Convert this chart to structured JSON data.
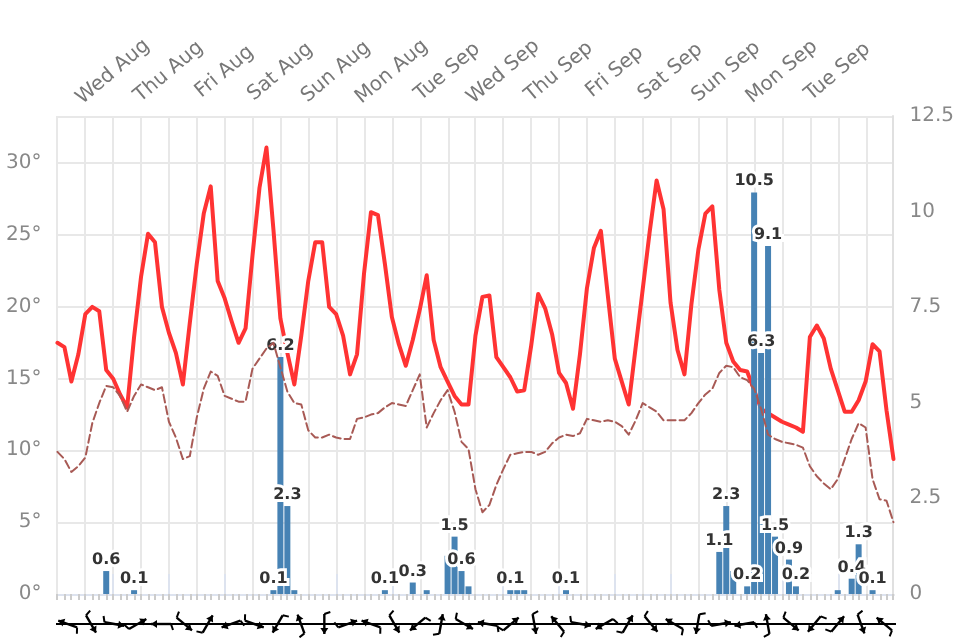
{
  "chart_data": {
    "type": "line",
    "categories": [
      null,
      null,
      null,
      null,
      null,
      null,
      null,
      null,
      "Wed Aug",
      null,
      null,
      null,
      null,
      null,
      null,
      null,
      "Thu Aug",
      null,
      null,
      null,
      null,
      null,
      null,
      null,
      "Fri Aug",
      null,
      null,
      null,
      null,
      null,
      null,
      null,
      "Sat Aug",
      null,
      null,
      null,
      null,
      null,
      null,
      null,
      "Sun Aug",
      null,
      null,
      null,
      null,
      null,
      null,
      null,
      "Mon Aug",
      null,
      null,
      null,
      null,
      null,
      null,
      null,
      "Tue Sep",
      null,
      null,
      null,
      null,
      null,
      null,
      null,
      "Wed Sep",
      null,
      null,
      null,
      null,
      null,
      null,
      null,
      "Thu Sep",
      null,
      null,
      null,
      null,
      null,
      null,
      null,
      "Fri Sep",
      null,
      null,
      null,
      null,
      null,
      null,
      null,
      "Sat Sep",
      null,
      null,
      null,
      null,
      null,
      null,
      null,
      "Sun Sep",
      null,
      null,
      null,
      null,
      null,
      null,
      null,
      "Mon Sep",
      null,
      null,
      null,
      null,
      null,
      null,
      null,
      "Tue Sep",
      null,
      null,
      null,
      null,
      null,
      null,
      null,
      null
    ],
    "ylim": [
      0,
      33.3
    ],
    "yticks": [
      {
        "value": 0,
        "label": "0°"
      },
      {
        "value": 5,
        "label": "5°"
      },
      {
        "value": 10,
        "label": "10°"
      },
      {
        "value": 15,
        "label": "15°"
      },
      {
        "value": 20,
        "label": "20°"
      },
      {
        "value": 25,
        "label": "25°"
      },
      {
        "value": 30,
        "label": "30°"
      }
    ],
    "y2lim": [
      0,
      12.5
    ],
    "y2ticks": [
      0,
      2.5,
      5,
      7.5,
      10,
      12.5
    ],
    "grid": true,
    "series": [
      {
        "color": "#ff3333",
        "line_style": "solid",
        "values": [
          17.5,
          17.2,
          14.8,
          16.7,
          19.5,
          20.0,
          19.7,
          15.6,
          15.0,
          13.9,
          13.0,
          17.9,
          22.1,
          25.1,
          24.5,
          20.0,
          18.2,
          16.8,
          14.6,
          18.9,
          23.0,
          26.5,
          28.4,
          21.8,
          20.6,
          19.0,
          17.5,
          18.5,
          23.6,
          28.3,
          31.1,
          25.4,
          19.2,
          16.8,
          14.6,
          18.0,
          21.8,
          24.5,
          24.5,
          20.0,
          19.5,
          18.0,
          15.3,
          16.7,
          22.3,
          26.6,
          26.4,
          23.0,
          19.3,
          17.4,
          15.9,
          17.7,
          19.8,
          22.2,
          17.7,
          15.8,
          14.8,
          13.8,
          13.2,
          13.2,
          18.0,
          20.7,
          20.8,
          16.5,
          15.8,
          15.1,
          14.1,
          14.2,
          17.3,
          20.9,
          19.9,
          18.1,
          15.4,
          14.7,
          12.9,
          16.7,
          21.3,
          24.1,
          25.3,
          20.8,
          16.4,
          14.8,
          13.2,
          17.2,
          21.2,
          25.2,
          28.8,
          26.8,
          20.3,
          17.0,
          15.3,
          20.2,
          24.0,
          26.5,
          27.0,
          21.2,
          17.5,
          16.2,
          15.6,
          15.5,
          14.2,
          12.9,
          12.6,
          12.3,
          12.0,
          11.8,
          11.6,
          11.3,
          17.9,
          18.7,
          17.8,
          15.7,
          14.2,
          12.7,
          12.7,
          13.5,
          14.8,
          17.4,
          16.9,
          12.8,
          9.4
        ]
      },
      {
        "color": "#a85a55",
        "line_style": "dashed",
        "values": [
          9.9,
          9.4,
          8.5,
          8.9,
          9.5,
          11.9,
          13.3,
          14.5,
          14.4,
          13.8,
          12.7,
          13.8,
          14.6,
          14.4,
          14.2,
          14.4,
          12.0,
          10.9,
          9.4,
          9.6,
          12.3,
          14.3,
          15.5,
          15.2,
          13.8,
          13.6,
          13.4,
          13.4,
          15.7,
          16.4,
          17.1,
          17.5,
          15.8,
          14.1,
          13.3,
          13.2,
          11.4,
          10.9,
          10.9,
          11.1,
          10.9,
          10.8,
          10.8,
          12.2,
          12.3,
          12.5,
          12.6,
          13.0,
          13.3,
          13.2,
          13.1,
          14.2,
          15.3,
          11.6,
          12.6,
          13.5,
          14.2,
          12.7,
          10.6,
          10.1,
          7.3,
          5.7,
          6.2,
          7.6,
          8.7,
          9.7,
          9.8,
          9.9,
          9.9,
          9.7,
          9.9,
          10.5,
          10.9,
          11.1,
          11.0,
          11.2,
          12.2,
          12.1,
          12.0,
          12.1,
          12.0,
          11.7,
          11.1,
          12.1,
          13.3,
          13.0,
          12.7,
          12.1,
          12.1,
          12.1,
          12.1,
          12.6,
          13.3,
          13.9,
          14.3,
          15.4,
          15.9,
          15.8,
          15.1,
          14.9,
          14.3,
          12.9,
          11.1,
          10.8,
          10.6,
          10.5,
          10.4,
          10.2,
          8.9,
          8.2,
          7.7,
          7.3,
          8.0,
          9.4,
          10.8,
          11.9,
          11.6,
          8.0,
          6.6,
          6.5,
          5.0
        ]
      },
      {
        "type": "bar",
        "axis": "y2",
        "color": "#4682b4",
        "values": [
          null,
          null,
          null,
          null,
          null,
          null,
          null,
          0.6,
          null,
          null,
          null,
          0.1,
          null,
          null,
          null,
          null,
          null,
          null,
          null,
          null,
          null,
          null,
          null,
          null,
          null,
          null,
          null,
          null,
          null,
          null,
          null,
          0.1,
          6.2,
          2.3,
          0.1,
          null,
          null,
          null,
          null,
          null,
          null,
          null,
          null,
          null,
          null,
          null,
          null,
          0.1,
          null,
          null,
          null,
          0.3,
          null,
          0.1,
          null,
          null,
          1.0,
          1.5,
          0.6,
          0.2,
          null,
          null,
          null,
          null,
          null,
          0.1,
          0.1,
          0.1,
          null,
          null,
          null,
          null,
          null,
          0.1,
          null,
          null,
          null,
          null,
          null,
          null,
          null,
          null,
          null,
          null,
          null,
          null,
          null,
          null,
          null,
          null,
          null,
          null,
          null,
          null,
          null,
          1.1,
          2.3,
          0.6,
          null,
          0.2,
          10.5,
          6.3,
          9.1,
          1.5,
          null,
          0.9,
          0.2,
          null,
          null,
          null,
          null,
          null,
          0.1,
          null,
          0.4,
          1.3,
          null,
          0.1,
          null,
          null,
          null
        ],
        "value_labels": [
          null,
          null,
          null,
          null,
          null,
          null,
          null,
          "0.6",
          null,
          null,
          null,
          "0.1",
          null,
          null,
          null,
          null,
          null,
          null,
          null,
          null,
          null,
          null,
          null,
          null,
          null,
          null,
          null,
          null,
          null,
          null,
          null,
          "0.1",
          "6.2",
          "2.3",
          null,
          null,
          null,
          null,
          null,
          null,
          null,
          null,
          null,
          null,
          null,
          null,
          null,
          "0.1",
          null,
          null,
          null,
          "0.3",
          null,
          null,
          null,
          null,
          null,
          "1.5",
          "0.6",
          null,
          null,
          null,
          null,
          null,
          null,
          "0.1",
          null,
          null,
          null,
          null,
          null,
          null,
          null,
          "0.1",
          null,
          null,
          null,
          null,
          null,
          null,
          null,
          null,
          null,
          null,
          null,
          null,
          null,
          null,
          null,
          null,
          null,
          null,
          null,
          null,
          null,
          "1.1",
          "2.3",
          null,
          null,
          "0.2",
          "10.5",
          "6.3",
          "9.1",
          "1.5",
          null,
          "0.9",
          "0.2",
          null,
          null,
          null,
          null,
          null,
          null,
          null,
          "0.4",
          "1.3",
          null,
          "0.1",
          null,
          null,
          null
        ]
      }
    ]
  }
}
